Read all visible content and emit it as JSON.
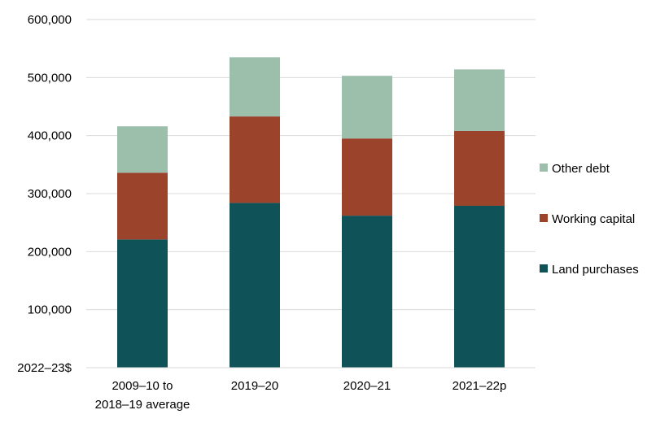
{
  "chart_data": {
    "type": "bar",
    "stacked": true,
    "categories": [
      [
        "2009–10 to",
        "2018–19 average"
      ],
      [
        "2019–20"
      ],
      [
        "2020–21"
      ],
      [
        "2021–22p"
      ]
    ],
    "series": [
      {
        "name": "Land purchases",
        "color": "#0f5257",
        "values": [
          221000,
          284000,
          262000,
          279000
        ]
      },
      {
        "name": "Working capital",
        "color": "#9b432b",
        "values": [
          115000,
          149000,
          133000,
          129000
        ]
      },
      {
        "name": "Other debt",
        "color": "#9bbfab",
        "values": [
          80000,
          102000,
          108000,
          106000
        ]
      }
    ],
    "ylabel": "2022–23$",
    "ylim": [
      0,
      600000
    ],
    "yticks": [
      "600,000",
      "500,000",
      "400,000",
      "300,000",
      "200,000",
      "100,000"
    ],
    "ytick_values": [
      600000,
      500000,
      400000,
      300000,
      200000,
      100000
    ],
    "grid": true,
    "legend_position": "right"
  }
}
